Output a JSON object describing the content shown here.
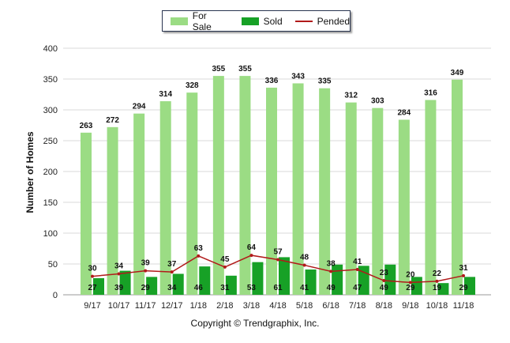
{
  "chart_data": {
    "type": "bar",
    "title": "",
    "xlabel": "",
    "ylabel": "Number of Homes",
    "ylim": [
      0,
      400
    ],
    "yticks": [
      0,
      50,
      100,
      150,
      200,
      250,
      300,
      350,
      400
    ],
    "grid": true,
    "legend_position": "top-center",
    "categories": [
      "9/17",
      "10/17",
      "11/17",
      "12/17",
      "1/18",
      "2/18",
      "3/18",
      "4/18",
      "5/18",
      "6/18",
      "7/18",
      "8/18",
      "9/18",
      "10/18",
      "11/18"
    ],
    "series": [
      {
        "name": "For Sale",
        "kind": "bar",
        "color": "#9bdc84",
        "values": [
          263,
          272,
          294,
          314,
          328,
          355,
          355,
          336,
          343,
          335,
          312,
          303,
          284,
          316,
          349
        ]
      },
      {
        "name": "Sold",
        "kind": "bar",
        "color": "#17a126",
        "values": [
          27,
          39,
          29,
          34,
          46,
          31,
          53,
          61,
          41,
          49,
          47,
          49,
          29,
          19,
          29
        ]
      },
      {
        "name": "Pended",
        "kind": "line",
        "color": "#b11a1a",
        "values": [
          30,
          34,
          39,
          37,
          63,
          45,
          64,
          57,
          48,
          38,
          41,
          23,
          20,
          22,
          31
        ]
      }
    ]
  },
  "legend": {
    "for_sale": "For Sale",
    "sold": "Sold",
    "pended": "Pended"
  },
  "copyright": "Copyright © Trendgraphix, Inc."
}
